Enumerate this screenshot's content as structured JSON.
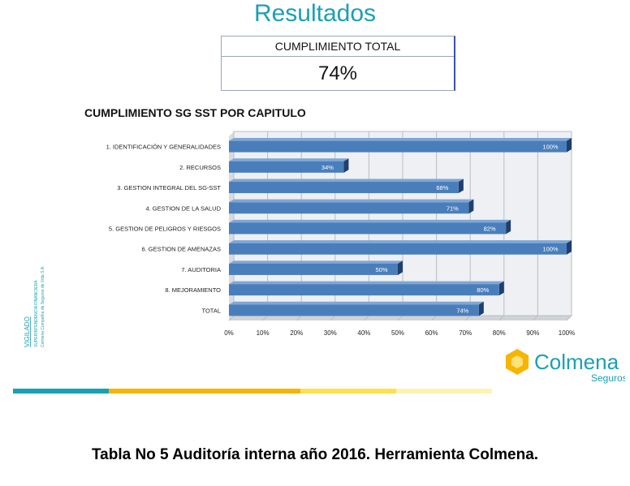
{
  "header": {
    "title": "Resultados",
    "score_label": "CUMPLIMIENTO TOTAL",
    "score_value": "74%"
  },
  "chart_data": {
    "type": "bar",
    "orientation": "horizontal",
    "title": "CUMPLIMIENTO SG SST POR CAPITULO",
    "categories": [
      "1. IDENTIFICACIÓN Y GENERALIDADES",
      "2. RECURSOS",
      "3. GESTION INTEGRAL DEL SG-SST",
      "4. GESTION DE LA SALUD",
      "5. GESTION DE PELIGROS Y RIESGOS",
      "6. GESTION DE AMENAZAS",
      "7. AUDITORIA",
      "8.  MEJORAMIENTO",
      "TOTAL"
    ],
    "values": [
      100,
      34,
      68,
      71,
      82,
      100,
      50,
      80,
      74
    ],
    "data_labels": [
      "100%",
      "34%",
      "68%",
      "71%",
      "82%",
      "100%",
      "50%",
      "80%",
      "74%"
    ],
    "xlim": [
      0,
      100
    ],
    "xticks": [
      "0%",
      "10%",
      "20%",
      "30%",
      "40%",
      "50%",
      "60%",
      "70%",
      "80%",
      "90%",
      "100%"
    ],
    "grid": true,
    "bar_color": "#4a7ebb",
    "bar_dark_color": "#1f3f6e"
  },
  "side_text": {
    "lines": [
      "VIGILADO",
      "SUPERINTENDENCIA FINANCIERA",
      "Colmena Compañía de Seguros de Vida S.A."
    ]
  },
  "branding": {
    "name": "Colmena",
    "sub": "Seguros",
    "name_color": "#1aa0b4",
    "hex_color": "#f7b500",
    "strip_colors": [
      "#1aa0b4",
      "#f7b500",
      "#ffe14d",
      "#fff3b0"
    ]
  },
  "caption": "Tabla No 5 Auditoría interna año 2016. Herramienta Colmena."
}
